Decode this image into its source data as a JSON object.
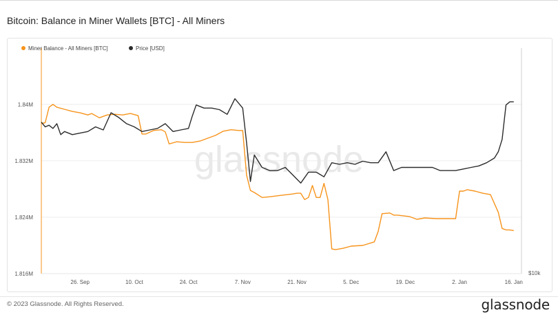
{
  "page": {
    "title": "Bitcoin: Balance in Miner Wallets [BTC] - All Miners",
    "copyright": "© 2023 Glassnode. All Rights Reserved.",
    "brand": "glassnode",
    "watermark": "glassnode"
  },
  "colors": {
    "balance": "#f7931a",
    "price": "#2b2b2b",
    "grid": "#eeeeee",
    "axis_text": "#555555"
  },
  "chart_data": {
    "type": "line",
    "title": "Bitcoin: Balance in Miner Wallets [BTC] - All Miners",
    "legend_position": "top-left",
    "grid": true,
    "x_ticks": [
      "26. Sep",
      "10. Oct",
      "24. Oct",
      "7. Nov",
      "21. Nov",
      "5. Dec",
      "19. Dec",
      "2. Jan",
      "16. Jan"
    ],
    "x_range": [
      "2022-09-16",
      "2023-01-18"
    ],
    "y_left": {
      "label": "",
      "ticks": [
        "1.816M",
        "1.824M",
        "1.832M",
        "1.84M"
      ],
      "range": [
        1816000,
        1847000
      ]
    },
    "y_right": {
      "label": "",
      "ticks": [
        "$10k"
      ],
      "range": [
        10000,
        24000
      ]
    },
    "series": [
      {
        "name": "Miner Balance - All Miners [BTC]",
        "axis": "left",
        "x": [
          "2022-09-16",
          "2022-09-17",
          "2022-09-18",
          "2022-09-19",
          "2022-09-20",
          "2022-09-22",
          "2022-09-24",
          "2022-09-26",
          "2022-09-28",
          "2022-09-29",
          "2022-10-01",
          "2022-10-03",
          "2022-10-05",
          "2022-10-07",
          "2022-10-09",
          "2022-10-11",
          "2022-10-12",
          "2022-10-13",
          "2022-10-15",
          "2022-10-17",
          "2022-10-18",
          "2022-10-19",
          "2022-10-21",
          "2022-10-23",
          "2022-10-25",
          "2022-10-27",
          "2022-10-29",
          "2022-10-31",
          "2022-11-02",
          "2022-11-04",
          "2022-11-06",
          "2022-11-07",
          "2022-11-08",
          "2022-11-09",
          "2022-11-10",
          "2022-11-12",
          "2022-11-14",
          "2022-11-17",
          "2022-11-20",
          "2022-11-21",
          "2022-11-22",
          "2022-11-23",
          "2022-11-24",
          "2022-11-25",
          "2022-11-26",
          "2022-11-27",
          "2022-11-28",
          "2022-11-29",
          "2022-11-30",
          "2022-12-01",
          "2022-12-03",
          "2022-12-05",
          "2022-12-08",
          "2022-12-11",
          "2022-12-12",
          "2022-12-13",
          "2022-12-15",
          "2022-12-16",
          "2022-12-17",
          "2022-12-20",
          "2022-12-22",
          "2022-12-24",
          "2022-12-27",
          "2022-12-30",
          "2023-01-01",
          "2023-01-02",
          "2023-01-03",
          "2023-01-04",
          "2023-01-06",
          "2023-01-08",
          "2023-01-10",
          "2023-01-12",
          "2023-01-13",
          "2023-01-14",
          "2023-01-15",
          "2023-01-16"
        ],
        "values": [
          1837300,
          1837400,
          1839600,
          1840000,
          1839600,
          1839300,
          1839000,
          1838800,
          1838500,
          1838700,
          1838100,
          1838500,
          1838600,
          1838500,
          1838700,
          1838400,
          1835800,
          1835800,
          1836300,
          1836400,
          1836100,
          1834400,
          1834700,
          1834600,
          1834600,
          1834800,
          1835200,
          1835600,
          1836200,
          1836400,
          1836300,
          1836300,
          1830000,
          1827800,
          1827500,
          1826800,
          1826900,
          1827100,
          1827300,
          1827400,
          1827400,
          1826500,
          1826800,
          1828500,
          1826800,
          1826800,
          1828800,
          1826500,
          1819500,
          1819400,
          1819600,
          1819900,
          1820000,
          1820500,
          1822000,
          1824500,
          1824600,
          1824300,
          1824300,
          1824100,
          1823700,
          1823900,
          1823800,
          1823800,
          1823800,
          1827700,
          1827700,
          1827900,
          1827700,
          1827400,
          1827200,
          1824700,
          1822400,
          1822200,
          1822200,
          1822100
        ]
      },
      {
        "name": "Price [USD]",
        "axis": "right",
        "x": [
          "2022-09-16",
          "2022-09-17",
          "2022-09-18",
          "2022-09-19",
          "2022-09-20",
          "2022-09-21",
          "2022-09-22",
          "2022-09-24",
          "2022-09-26",
          "2022-09-28",
          "2022-09-30",
          "2022-10-02",
          "2022-10-04",
          "2022-10-06",
          "2022-10-08",
          "2022-10-10",
          "2022-10-12",
          "2022-10-14",
          "2022-10-16",
          "2022-10-18",
          "2022-10-20",
          "2022-10-22",
          "2022-10-24",
          "2022-10-25",
          "2022-10-26",
          "2022-10-28",
          "2022-10-30",
          "2022-11-01",
          "2022-11-03",
          "2022-11-05",
          "2022-11-07",
          "2022-11-08",
          "2022-11-09",
          "2022-11-10",
          "2022-11-12",
          "2022-11-14",
          "2022-11-16",
          "2022-11-18",
          "2022-11-20",
          "2022-11-22",
          "2022-11-24",
          "2022-11-26",
          "2022-11-28",
          "2022-11-30",
          "2022-12-02",
          "2022-12-04",
          "2022-12-06",
          "2022-12-08",
          "2022-12-10",
          "2022-12-12",
          "2022-12-14",
          "2022-12-16",
          "2022-12-18",
          "2022-12-20",
          "2022-12-22",
          "2022-12-24",
          "2022-12-26",
          "2022-12-28",
          "2022-12-30",
          "2023-01-01",
          "2023-01-03",
          "2023-01-05",
          "2023-01-07",
          "2023-01-09",
          "2023-01-11",
          "2023-01-12",
          "2023-01-13",
          "2023-01-14",
          "2023-01-15",
          "2023-01-16"
        ],
        "values": [
          19700,
          19400,
          19500,
          19300,
          19600,
          18900,
          19100,
          18900,
          19000,
          19100,
          19400,
          19200,
          20300,
          20000,
          19600,
          19400,
          19100,
          19200,
          19300,
          19600,
          19100,
          19200,
          19300,
          20100,
          20800,
          20600,
          20600,
          20500,
          20200,
          21200,
          20600,
          18400,
          15900,
          17600,
          16800,
          16600,
          16600,
          16800,
          16300,
          15800,
          16500,
          16500,
          16200,
          17100,
          17000,
          17100,
          17000,
          17200,
          17100,
          17100,
          17800,
          16600,
          16800,
          16800,
          16800,
          16800,
          16800,
          16600,
          16600,
          16600,
          16700,
          16800,
          16900,
          17100,
          17400,
          17800,
          18600,
          20800,
          21000,
          21000
        ]
      }
    ]
  }
}
